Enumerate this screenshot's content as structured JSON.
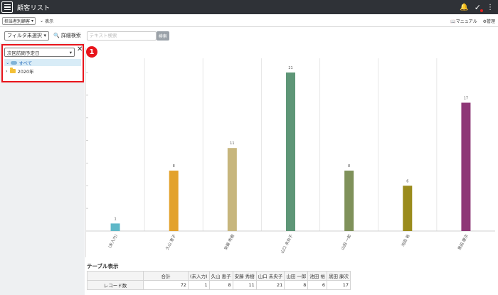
{
  "app": {
    "title": "顧客リスト"
  },
  "toolbar": {
    "view_select": "担当者別顧客",
    "display_label": "表示",
    "manual_label": "マニュアル",
    "admin_label": "管理"
  },
  "filter": {
    "select_value": "フィルタ未選択",
    "detail_search_label": "詳細検索",
    "search_placeholder": "テキスト検索",
    "search_button": "検索"
  },
  "sidebar": {
    "field_select": "次回訪問予定日",
    "tree": {
      "all": "すべて",
      "year": "2020年"
    },
    "callout": "1"
  },
  "chart_data": {
    "type": "bar",
    "categories": [
      "(未入力)",
      "久山 恵子",
      "安藤 秀樹",
      "山口 未央子",
      "山田 一郎",
      "池田 裕",
      "黒田 康次"
    ],
    "values": [
      1,
      8,
      11,
      21,
      8,
      6,
      17
    ],
    "colors": [
      "#5fb8c8",
      "#e3a22c",
      "#c7b67d",
      "#5e9677",
      "#7f915a",
      "#9a8b1c",
      "#8e3777"
    ],
    "ylim": [
      0,
      21
    ],
    "grid": true
  },
  "table": {
    "title": "テーブル表示",
    "headers": [
      "合計",
      "(未入力)",
      "久山 恵子",
      "安藤 秀樹",
      "山口 未央子",
      "山田 一郎",
      "池田 裕",
      "黒田 康次"
    ],
    "row_label": "レコード数",
    "values": [
      "72",
      "1",
      "8",
      "11",
      "21",
      "8",
      "6",
      "17"
    ]
  }
}
